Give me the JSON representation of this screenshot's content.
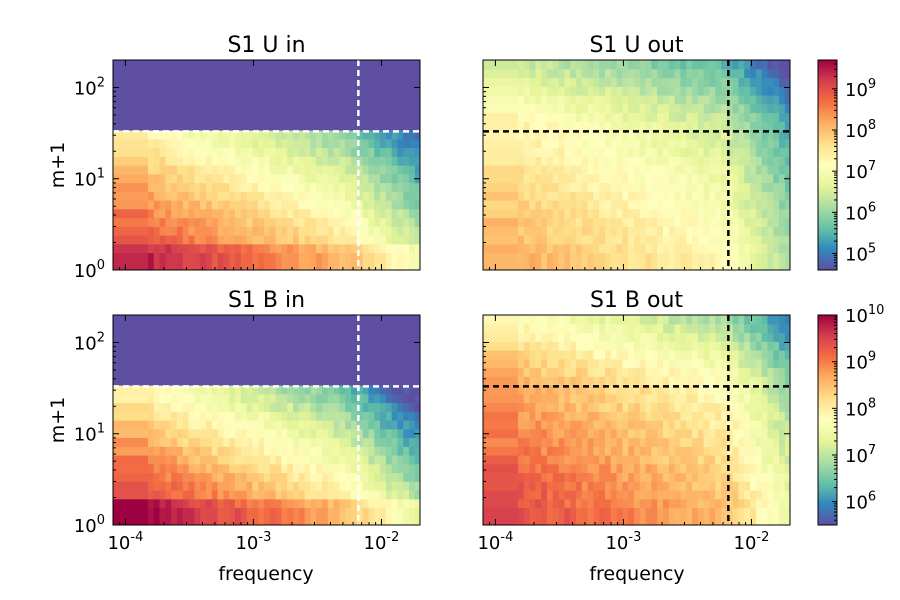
{
  "chart_data": {
    "type": "heatmap",
    "shared_axes": {
      "xlabel": "frequency",
      "ylabel": "m+1",
      "x_scale": "log",
      "y_scale": "log",
      "xlim": [
        8e-05,
        0.02
      ],
      "ylim": [
        1,
        200
      ],
      "x_ticks": [
        {
          "value": 0.0001,
          "base": "10",
          "exp": "-4"
        },
        {
          "value": 0.001,
          "base": "10",
          "exp": "-3"
        },
        {
          "value": 0.01,
          "base": "10",
          "exp": "-2"
        }
      ],
      "y_ticks": [
        {
          "value": 1,
          "base": "10",
          "exp": "0"
        },
        {
          "value": 10,
          "base": "10",
          "exp": "1"
        },
        {
          "value": 100,
          "base": "10",
          "exp": "2"
        }
      ],
      "cutoff_frequency": 0.0066,
      "cutoff_m1": 33,
      "colormap": "Spectral_r"
    },
    "panels": [
      {
        "title": "S1 U in",
        "variable": "U",
        "direction": "in",
        "line_color": "#ffffff",
        "shape": "in",
        "peak": 9.5,
        "col": 0,
        "row": 0
      },
      {
        "title": "S1 U out",
        "variable": "U",
        "direction": "out",
        "line_color": "#000000",
        "shape": "out",
        "peak": 8.3,
        "col": 1,
        "row": 0
      },
      {
        "title": "S1 B in",
        "variable": "B",
        "direction": "in",
        "line_color": "#ffffff",
        "shape": "in",
        "peak": 10.0,
        "col": 0,
        "row": 1
      },
      {
        "title": "S1 B out",
        "variable": "B",
        "direction": "out",
        "line_color": "#000000",
        "shape": "out",
        "peak": 9.6,
        "col": 1,
        "row": 1
      }
    ],
    "colorbars": [
      {
        "row": 0,
        "vmin_log": 4.6,
        "vmax_log": 9.7,
        "ticks": [
          {
            "exp": 5,
            "label_base": "10",
            "label_exp": "5"
          },
          {
            "exp": 6,
            "label_base": "10",
            "label_exp": "6"
          },
          {
            "exp": 7,
            "label_base": "10",
            "label_exp": "7"
          },
          {
            "exp": 8,
            "label_base": "10",
            "label_exp": "8"
          },
          {
            "exp": 9,
            "label_base": "10",
            "label_exp": "9"
          }
        ]
      },
      {
        "row": 1,
        "vmin_log": 5.5,
        "vmax_log": 10.0,
        "ticks": [
          {
            "exp": 6,
            "label_base": "10",
            "label_exp": "6"
          },
          {
            "exp": 7,
            "label_base": "10",
            "label_exp": "7"
          },
          {
            "exp": 8,
            "label_base": "10",
            "label_exp": "8"
          },
          {
            "exp": 9,
            "label_base": "10",
            "label_exp": "9"
          },
          {
            "exp": 10,
            "label_base": "10",
            "label_exp": "10"
          }
        ]
      }
    ]
  }
}
